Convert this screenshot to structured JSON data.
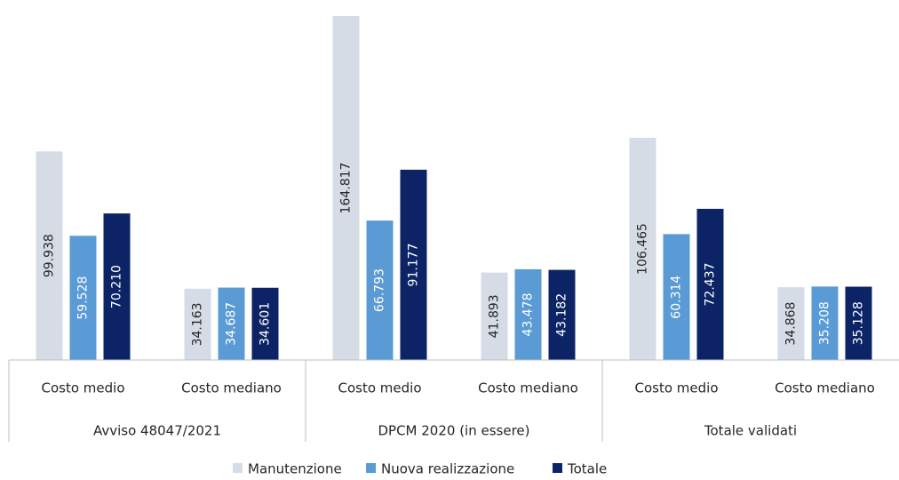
{
  "chart_data": {
    "type": "bar",
    "categories": [
      "Costo medio",
      "Costo mediano",
      "Costo medio",
      "Costo mediano",
      "Costo medio",
      "Costo mediano"
    ],
    "groups": [
      "Avviso 48047/2021",
      "DPCM 2020 (in essere)",
      "Totale validati"
    ],
    "series": [
      {
        "name": "Manutenzione",
        "color": "#d6dce5",
        "values": [
          99938,
          34163,
          164817,
          41893,
          106465,
          34868
        ],
        "value_labels": [
          "99.938",
          "34.163",
          "164.817",
          "41.893",
          "106.465",
          "34.868"
        ]
      },
      {
        "name": "Nuova realizzazione",
        "color": "#5b9bd5",
        "values": [
          59528,
          34687,
          66793,
          43478,
          60314,
          35208
        ],
        "value_labels": [
          "59.528",
          "34.687",
          "66.793",
          "43.478",
          "60.314",
          "35.208"
        ]
      },
      {
        "name": "Totale",
        "color": "#0c2466",
        "values": [
          70210,
          34601,
          91177,
          43182,
          72437,
          35128
        ],
        "value_labels": [
          "70.210",
          "34.601",
          "91.177",
          "43.182",
          "72.437",
          "35.128"
        ]
      }
    ],
    "legend": "bottom"
  }
}
